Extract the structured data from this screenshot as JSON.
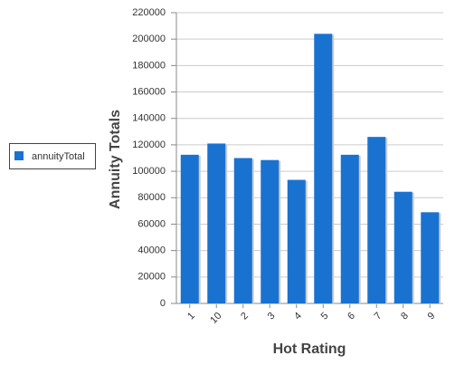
{
  "chart_data": {
    "type": "bar",
    "x_label": "Hot Rating",
    "y_label": "Annuity Totals",
    "categories": [
      "1",
      "10",
      "2",
      "3",
      "4",
      "5",
      "6",
      "7",
      "8",
      "9"
    ],
    "series": [
      {
        "name": "annuityTotal",
        "color": "#1a72d0",
        "values": [
          112500,
          121000,
          110000,
          108500,
          93500,
          204000,
          112500,
          126000,
          84500,
          69000
        ]
      }
    ],
    "ylim": [
      0,
      220000
    ],
    "yticks": [
      0,
      20000,
      40000,
      60000,
      80000,
      100000,
      120000,
      140000,
      160000,
      180000,
      200000,
      220000
    ],
    "grid": true,
    "legend": "left"
  }
}
